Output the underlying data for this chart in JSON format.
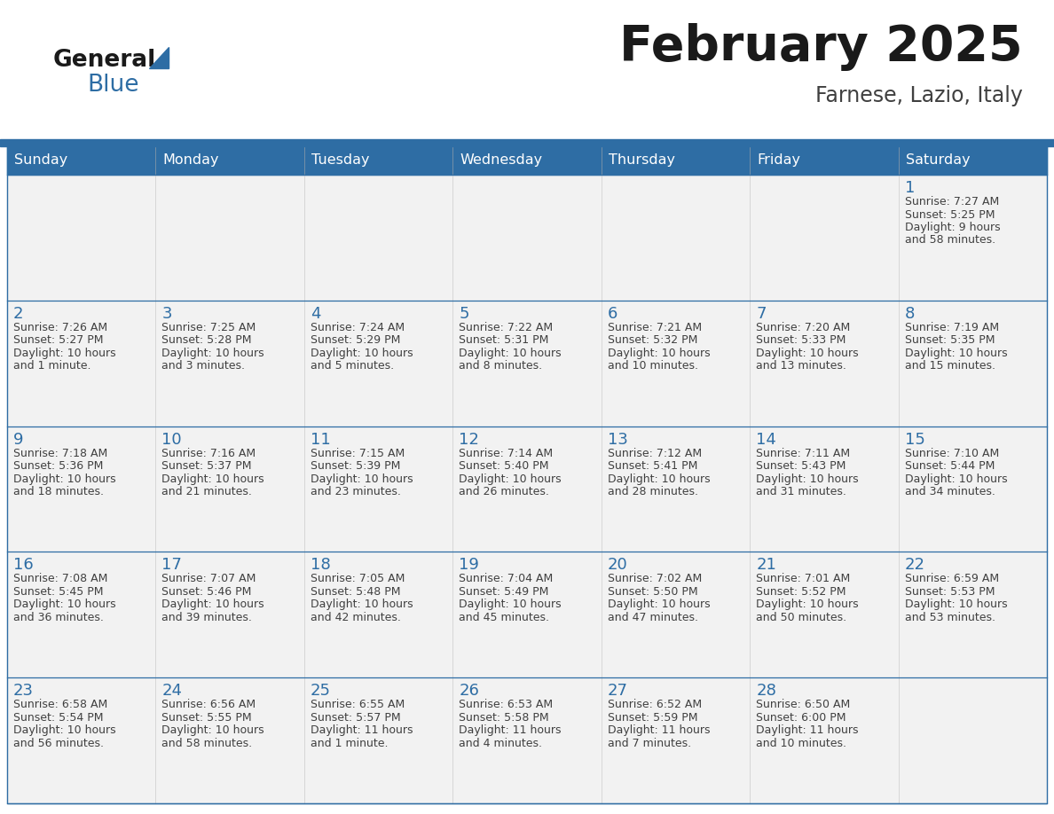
{
  "title": "February 2025",
  "subtitle": "Farnese, Lazio, Italy",
  "header_bg": "#2E6DA4",
  "header_text_color": "#FFFFFF",
  "cell_bg": "#F2F2F2",
  "day_number_color": "#2E6DA4",
  "info_text_color": "#404040",
  "border_color": "#2E6DA4",
  "days_of_week": [
    "Sunday",
    "Monday",
    "Tuesday",
    "Wednesday",
    "Thursday",
    "Friday",
    "Saturday"
  ],
  "calendar_data": [
    [
      null,
      null,
      null,
      null,
      null,
      null,
      {
        "day": "1",
        "sunrise": "7:27 AM",
        "sunset": "5:25 PM",
        "daylight_line1": "Daylight: 9 hours",
        "daylight_line2": "and 58 minutes."
      }
    ],
    [
      {
        "day": "2",
        "sunrise": "7:26 AM",
        "sunset": "5:27 PM",
        "daylight_line1": "Daylight: 10 hours",
        "daylight_line2": "and 1 minute."
      },
      {
        "day": "3",
        "sunrise": "7:25 AM",
        "sunset": "5:28 PM",
        "daylight_line1": "Daylight: 10 hours",
        "daylight_line2": "and 3 minutes."
      },
      {
        "day": "4",
        "sunrise": "7:24 AM",
        "sunset": "5:29 PM",
        "daylight_line1": "Daylight: 10 hours",
        "daylight_line2": "and 5 minutes."
      },
      {
        "day": "5",
        "sunrise": "7:22 AM",
        "sunset": "5:31 PM",
        "daylight_line1": "Daylight: 10 hours",
        "daylight_line2": "and 8 minutes."
      },
      {
        "day": "6",
        "sunrise": "7:21 AM",
        "sunset": "5:32 PM",
        "daylight_line1": "Daylight: 10 hours",
        "daylight_line2": "and 10 minutes."
      },
      {
        "day": "7",
        "sunrise": "7:20 AM",
        "sunset": "5:33 PM",
        "daylight_line1": "Daylight: 10 hours",
        "daylight_line2": "and 13 minutes."
      },
      {
        "day": "8",
        "sunrise": "7:19 AM",
        "sunset": "5:35 PM",
        "daylight_line1": "Daylight: 10 hours",
        "daylight_line2": "and 15 minutes."
      }
    ],
    [
      {
        "day": "9",
        "sunrise": "7:18 AM",
        "sunset": "5:36 PM",
        "daylight_line1": "Daylight: 10 hours",
        "daylight_line2": "and 18 minutes."
      },
      {
        "day": "10",
        "sunrise": "7:16 AM",
        "sunset": "5:37 PM",
        "daylight_line1": "Daylight: 10 hours",
        "daylight_line2": "and 21 minutes."
      },
      {
        "day": "11",
        "sunrise": "7:15 AM",
        "sunset": "5:39 PM",
        "daylight_line1": "Daylight: 10 hours",
        "daylight_line2": "and 23 minutes."
      },
      {
        "day": "12",
        "sunrise": "7:14 AM",
        "sunset": "5:40 PM",
        "daylight_line1": "Daylight: 10 hours",
        "daylight_line2": "and 26 minutes."
      },
      {
        "day": "13",
        "sunrise": "7:12 AM",
        "sunset": "5:41 PM",
        "daylight_line1": "Daylight: 10 hours",
        "daylight_line2": "and 28 minutes."
      },
      {
        "day": "14",
        "sunrise": "7:11 AM",
        "sunset": "5:43 PM",
        "daylight_line1": "Daylight: 10 hours",
        "daylight_line2": "and 31 minutes."
      },
      {
        "day": "15",
        "sunrise": "7:10 AM",
        "sunset": "5:44 PM",
        "daylight_line1": "Daylight: 10 hours",
        "daylight_line2": "and 34 minutes."
      }
    ],
    [
      {
        "day": "16",
        "sunrise": "7:08 AM",
        "sunset": "5:45 PM",
        "daylight_line1": "Daylight: 10 hours",
        "daylight_line2": "and 36 minutes."
      },
      {
        "day": "17",
        "sunrise": "7:07 AM",
        "sunset": "5:46 PM",
        "daylight_line1": "Daylight: 10 hours",
        "daylight_line2": "and 39 minutes."
      },
      {
        "day": "18",
        "sunrise": "7:05 AM",
        "sunset": "5:48 PM",
        "daylight_line1": "Daylight: 10 hours",
        "daylight_line2": "and 42 minutes."
      },
      {
        "day": "19",
        "sunrise": "7:04 AM",
        "sunset": "5:49 PM",
        "daylight_line1": "Daylight: 10 hours",
        "daylight_line2": "and 45 minutes."
      },
      {
        "day": "20",
        "sunrise": "7:02 AM",
        "sunset": "5:50 PM",
        "daylight_line1": "Daylight: 10 hours",
        "daylight_line2": "and 47 minutes."
      },
      {
        "day": "21",
        "sunrise": "7:01 AM",
        "sunset": "5:52 PM",
        "daylight_line1": "Daylight: 10 hours",
        "daylight_line2": "and 50 minutes."
      },
      {
        "day": "22",
        "sunrise": "6:59 AM",
        "sunset": "5:53 PM",
        "daylight_line1": "Daylight: 10 hours",
        "daylight_line2": "and 53 minutes."
      }
    ],
    [
      {
        "day": "23",
        "sunrise": "6:58 AM",
        "sunset": "5:54 PM",
        "daylight_line1": "Daylight: 10 hours",
        "daylight_line2": "and 56 minutes."
      },
      {
        "day": "24",
        "sunrise": "6:56 AM",
        "sunset": "5:55 PM",
        "daylight_line1": "Daylight: 10 hours",
        "daylight_line2": "and 58 minutes."
      },
      {
        "day": "25",
        "sunrise": "6:55 AM",
        "sunset": "5:57 PM",
        "daylight_line1": "Daylight: 11 hours",
        "daylight_line2": "and 1 minute."
      },
      {
        "day": "26",
        "sunrise": "6:53 AM",
        "sunset": "5:58 PM",
        "daylight_line1": "Daylight: 11 hours",
        "daylight_line2": "and 4 minutes."
      },
      {
        "day": "27",
        "sunrise": "6:52 AM",
        "sunset": "5:59 PM",
        "daylight_line1": "Daylight: 11 hours",
        "daylight_line2": "and 7 minutes."
      },
      {
        "day": "28",
        "sunrise": "6:50 AM",
        "sunset": "6:00 PM",
        "daylight_line1": "Daylight: 11 hours",
        "daylight_line2": "and 10 minutes."
      },
      null
    ]
  ]
}
